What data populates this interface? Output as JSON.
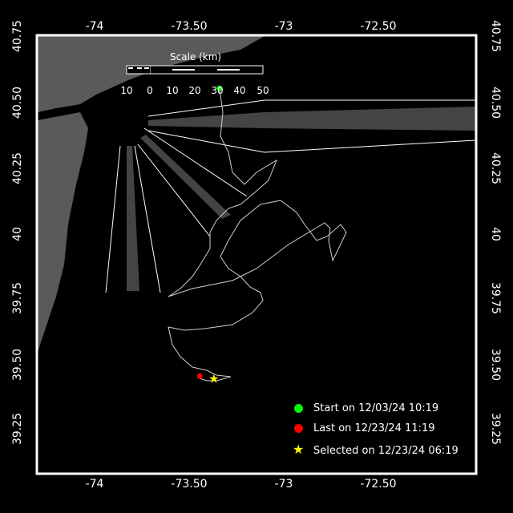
{
  "map": {
    "x_ticks": [
      "-74",
      "-73.50",
      "-73",
      "-72.50"
    ],
    "y_ticks": [
      "40.75",
      "40.50",
      "40.25",
      "40",
      "39.75",
      "39.50",
      "39.25"
    ],
    "lon_range": [
      -74.3,
      -71.99
    ],
    "lat_range": [
      39.08,
      40.75
    ],
    "colors": {
      "land": "#5a5a5a",
      "water": "#000000",
      "track": "#d0d0d0",
      "start": "#00ff00",
      "last": "#ff0000",
      "selected": "#ffff00"
    }
  },
  "scale": {
    "title": "Scale (km)",
    "labels": [
      "10",
      "0",
      "10",
      "20",
      "30",
      "40",
      "50"
    ]
  },
  "markers": {
    "start": {
      "lon": -73.34,
      "lat": 40.55
    },
    "last": {
      "lon": -73.445,
      "lat": 39.45
    },
    "selected": {
      "lon": -73.37,
      "lat": 39.44
    }
  },
  "legend": [
    {
      "icon": "green-dot",
      "label": "Start on 12/03/24 10:19"
    },
    {
      "icon": "red-dot",
      "label": "Last on 12/23/24 11:19"
    },
    {
      "icon": "yellow-star",
      "label": "Selected on 12/23/24 06:19"
    }
  ]
}
